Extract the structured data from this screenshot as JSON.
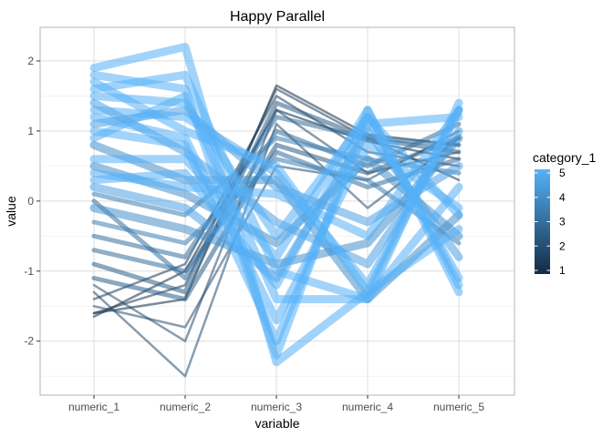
{
  "chart_data": {
    "type": "line",
    "subtype": "parallel-coordinates",
    "title": "Happy Parallel",
    "xlabel": "variable",
    "ylabel": "value",
    "categories": [
      "numeric_1",
      "numeric_2",
      "numeric_3",
      "numeric_4",
      "numeric_5"
    ],
    "ylim": [
      -2.77,
      2.48
    ],
    "yticks": [
      -2,
      -1,
      0,
      1,
      2
    ],
    "grid": true,
    "legend": {
      "title": "category_1",
      "position": "right",
      "type": "colorbar",
      "range": [
        1,
        5
      ],
      "ticks": [
        1,
        2,
        3,
        4,
        5
      ],
      "low_color": "#132B43",
      "high_color": "#56B1F7"
    },
    "series": [
      {
        "category_1": 5,
        "values": [
          1.9,
          2.2,
          -2.3,
          -1.3,
          1.3
        ]
      },
      {
        "category_1": 5,
        "values": [
          1.8,
          1.6,
          -2.2,
          1.3,
          -1.2
        ]
      },
      {
        "category_1": 5,
        "values": [
          1.6,
          1.8,
          -1.0,
          -1.4,
          1.4
        ]
      },
      {
        "category_1": 5,
        "values": [
          1.5,
          1.4,
          -0.5,
          1.2,
          -0.2
        ]
      },
      {
        "category_1": 5,
        "values": [
          1.3,
          1.2,
          0.4,
          -1.2,
          1.3
        ]
      },
      {
        "category_1": 5,
        "values": [
          1.2,
          0.9,
          -1.7,
          0.8,
          -0.1
        ]
      },
      {
        "category_1": 5,
        "values": [
          0.9,
          1.5,
          -1.4,
          -1.4,
          0.2
        ]
      },
      {
        "category_1": 5,
        "values": [
          0.6,
          0.6,
          -0.8,
          1.3,
          -1.3
        ]
      },
      {
        "category_1": 5,
        "values": [
          0.4,
          0.2,
          0.1,
          -0.5,
          1.3
        ]
      },
      {
        "category_1": 5,
        "values": [
          1.0,
          0.8,
          -2.0,
          1.1,
          1.2
        ]
      },
      {
        "category_1": 5,
        "values": [
          1.7,
          1.0,
          0.5,
          -1.3,
          -0.4
        ]
      },
      {
        "category_1": 5,
        "values": [
          0.3,
          0.4,
          -1.2,
          1.2,
          -1.1
        ]
      },
      {
        "category_1": 4.5,
        "values": [
          1.4,
          0.7,
          -0.3,
          -0.9,
          1.0
        ]
      },
      {
        "category_1": 4.5,
        "values": [
          0.2,
          -0.1,
          -1.1,
          1.0,
          -0.8
        ]
      },
      {
        "category_1": 4.5,
        "values": [
          1.1,
          1.3,
          0.2,
          -0.3,
          0.5
        ]
      },
      {
        "category_1": 4,
        "values": [
          0.5,
          0.1,
          -0.6,
          0.6,
          -0.5
        ]
      },
      {
        "category_1": 4,
        "values": [
          -0.1,
          -0.4,
          -0.9,
          -0.6,
          0.9
        ]
      },
      {
        "category_1": 4,
        "values": [
          0.8,
          0.3,
          0.3,
          -1.4,
          -0.2
        ]
      },
      {
        "category_1": 3.5,
        "values": [
          -0.3,
          -0.6,
          0.6,
          0.3,
          -0.6
        ]
      },
      {
        "category_1": 3.5,
        "values": [
          0.1,
          -0.2,
          0.9,
          0.6,
          0.4
        ]
      },
      {
        "category_1": 3,
        "values": [
          -0.5,
          -0.8,
          1.2,
          0.9,
          0.8
        ]
      },
      {
        "category_1": 3,
        "values": [
          -0.7,
          -1.0,
          0.7,
          0.2,
          0.6
        ]
      },
      {
        "category_1": 3,
        "values": [
          0.0,
          -1.1,
          1.0,
          0.5,
          1.1
        ]
      },
      {
        "category_1": 2.5,
        "values": [
          -0.9,
          -1.3,
          1.4,
          0.9,
          0.7
        ]
      },
      {
        "category_1": 2.5,
        "values": [
          -1.1,
          -1.4,
          0.8,
          0.4,
          0.9
        ]
      },
      {
        "category_1": 2,
        "values": [
          -1.2,
          -2.0,
          1.3,
          0.4,
          0.7
        ]
      },
      {
        "category_1": 2,
        "values": [
          -1.3,
          -2.5,
          1.1,
          -0.1,
          0.9
        ]
      },
      {
        "category_1": 2,
        "values": [
          -1.5,
          -1.8,
          0.5,
          0.3,
          1.0
        ]
      },
      {
        "category_1": 1.5,
        "values": [
          -1.6,
          -1.2,
          1.6,
          0.9,
          0.3
        ]
      },
      {
        "category_1": 1.5,
        "values": [
          -1.4,
          -0.9,
          1.5,
          0.7,
          0.5
        ]
      },
      {
        "category_1": 1,
        "values": [
          -1.6,
          -1.4,
          1.65,
          0.95,
          0.8
        ]
      },
      {
        "category_1": 1,
        "values": [
          -1.65,
          -1.0,
          1.3,
          0.85,
          0.6
        ]
      }
    ]
  }
}
